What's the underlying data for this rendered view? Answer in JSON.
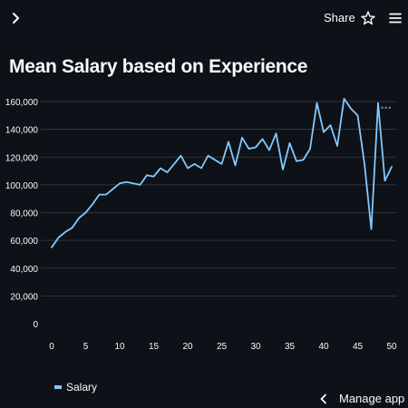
{
  "topbar": {
    "share_label": "Share"
  },
  "icons": {
    "sidebar_toggle": "chevron-right-icon",
    "favorite": "star-icon",
    "menu": "hamburger-menu-icon",
    "manage_app": "chevron-left-icon"
  },
  "page": {
    "title": "Mean Salary based on Experience"
  },
  "footer": {
    "manage_label": "Manage app"
  },
  "colors": {
    "background": "#0e1117",
    "line": "#83c9ff",
    "grid": "#3a3f4a",
    "text": "#fafafa"
  },
  "chart_data": {
    "type": "line",
    "title": "",
    "xlabel": "",
    "ylabel": "",
    "xlim": [
      0,
      50
    ],
    "ylim": [
      0,
      160000
    ],
    "xticks": [
      0,
      5,
      10,
      15,
      20,
      25,
      30,
      35,
      40,
      45,
      50
    ],
    "yticks": [
      0,
      20000,
      40000,
      60000,
      80000,
      100000,
      120000,
      140000,
      160000
    ],
    "ytick_labels": [
      "0",
      "20,000",
      "40,000",
      "60,000",
      "80,000",
      "100,000",
      "120,000",
      "140,000",
      "160,000"
    ],
    "grid": true,
    "legend_position": "bottom-left",
    "series": [
      {
        "name": "Salary",
        "x": [
          0,
          1,
          2,
          3,
          4,
          5,
          6,
          7,
          8,
          9,
          10,
          11,
          12,
          13,
          14,
          15,
          16,
          17,
          18,
          19,
          20,
          21,
          22,
          23,
          24,
          25,
          26,
          27,
          28,
          29,
          30,
          31,
          32,
          33,
          34,
          35,
          36,
          37,
          38,
          39,
          40,
          41,
          42,
          43,
          44,
          45,
          46,
          47,
          48,
          49,
          50
        ],
        "values": [
          55000,
          62000,
          66000,
          69000,
          76000,
          80000,
          86000,
          93000,
          93000,
          97000,
          101000,
          102000,
          101000,
          100000,
          107000,
          106000,
          112000,
          109000,
          115000,
          121000,
          112000,
          115000,
          112000,
          121000,
          118000,
          115000,
          131000,
          114000,
          134000,
          126000,
          127000,
          133000,
          125000,
          137000,
          111000,
          130000,
          117000,
          118000,
          126000,
          159000,
          138000,
          143000,
          128000,
          162000,
          155000,
          150000,
          115000,
          68000,
          159000,
          103000,
          113000
        ]
      }
    ]
  }
}
